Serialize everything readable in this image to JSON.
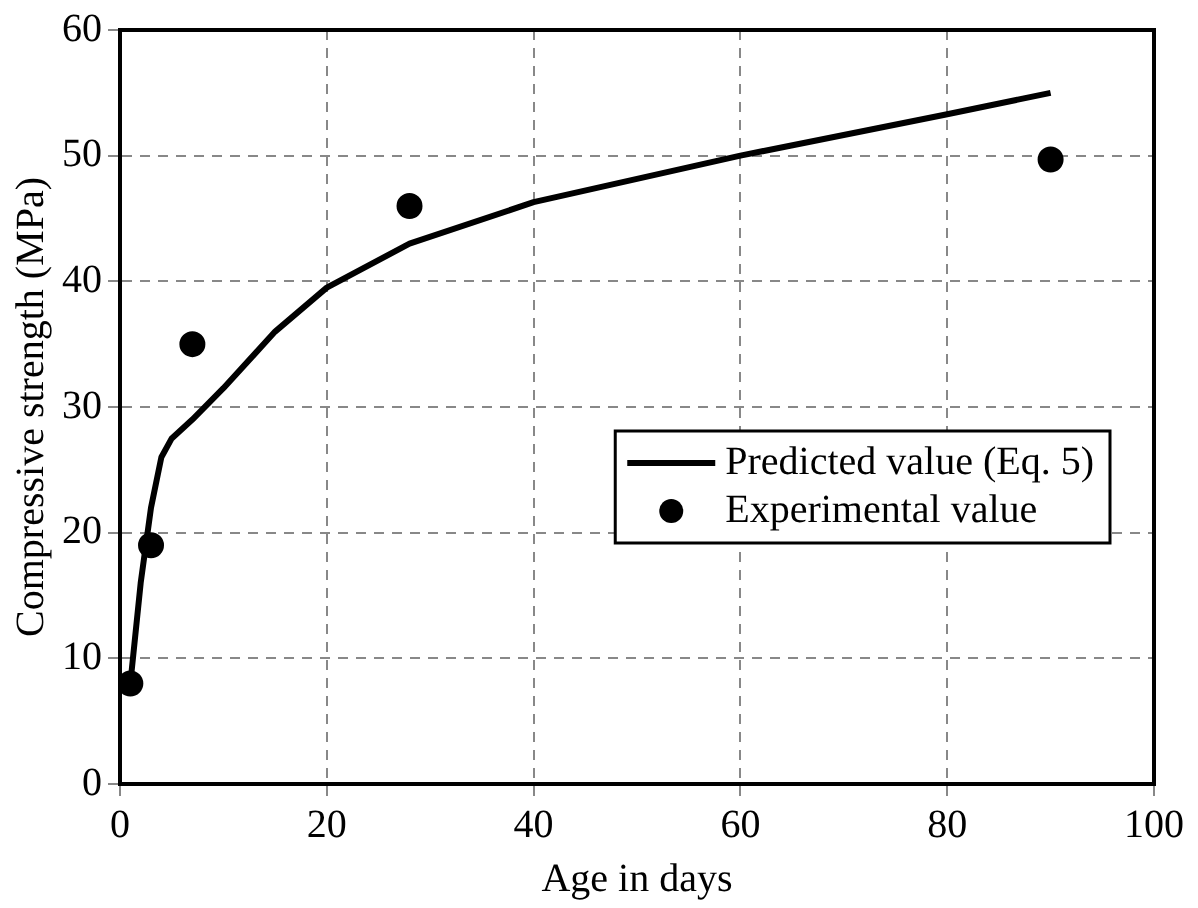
{
  "chart_data": {
    "type": "scatter",
    "xlabel": "Age in days",
    "ylabel": "Compressive strength (MPa)",
    "xlim": [
      0,
      100
    ],
    "xticks": [
      0,
      20,
      40,
      60,
      80,
      100
    ],
    "ylim": [
      0,
      60
    ],
    "yticks": [
      0,
      10,
      20,
      30,
      40,
      50,
      60
    ],
    "grid": true,
    "legend": "center right",
    "series": [
      {
        "name": "Predicted value (Eq. 5)",
        "type": "line",
        "marker": "none",
        "line_style": "solid",
        "color": "#000000",
        "x": [
          1,
          2,
          3,
          4,
          5,
          7,
          10,
          15,
          20,
          28,
          40,
          60,
          80,
          90
        ],
        "values": [
          8,
          16,
          22,
          26,
          27.5,
          29,
          31.5,
          36,
          39.5,
          43,
          46.3,
          50,
          53.3,
          55
        ]
      },
      {
        "name": "Experimental value",
        "type": "scatter",
        "marker": "circle",
        "color": "#000000",
        "x": [
          1,
          3,
          7,
          28,
          90
        ],
        "values": [
          8,
          19,
          35,
          46,
          49.7
        ]
      }
    ]
  }
}
